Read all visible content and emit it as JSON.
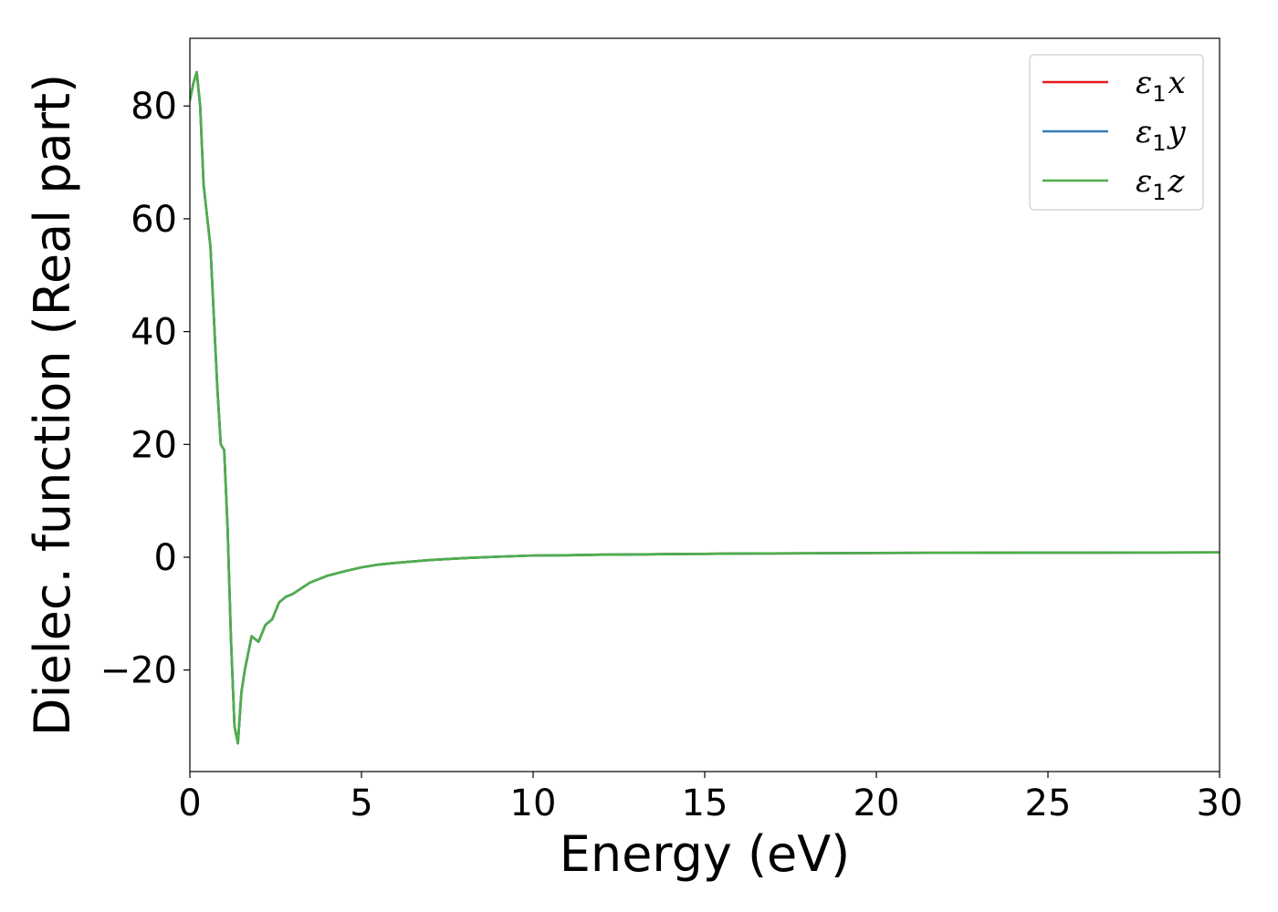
{
  "chart_data": {
    "type": "line",
    "title": "",
    "xlabel": "Energy (eV)",
    "ylabel": "Dielec. function (Real part)",
    "xlim": [
      0,
      30
    ],
    "ylim": [
      -38,
      92
    ],
    "xticks": [
      0,
      5,
      10,
      15,
      20,
      25,
      30
    ],
    "xtick_labels": [
      "0",
      "5",
      "10",
      "15",
      "20",
      "25",
      "30"
    ],
    "yticks": [
      -20,
      0,
      20,
      40,
      60,
      80
    ],
    "ytick_labels": [
      "−20",
      "0",
      "20",
      "40",
      "60",
      "80"
    ],
    "grid": false,
    "legend_position": "top-right",
    "x": [
      0,
      0.1,
      0.2,
      0.3,
      0.4,
      0.6,
      0.8,
      0.9,
      1.0,
      1.1,
      1.2,
      1.3,
      1.4,
      1.5,
      1.6,
      1.8,
      2.0,
      2.2,
      2.4,
      2.6,
      2.8,
      3.0,
      3.5,
      4.0,
      4.5,
      5.0,
      5.5,
      6.0,
      7.0,
      8.0,
      9.0,
      10.0,
      11.0,
      12.0,
      13.0,
      14.0,
      15.0,
      16.0,
      18.0,
      20.0,
      22.0,
      24.0,
      26.0,
      28.0,
      30.0
    ],
    "series": [
      {
        "name": "ε₁x",
        "label_main": "ε",
        "label_sub": "1",
        "label_var": "x",
        "color": "#e41a1c",
        "y": [
          81,
          84,
          86,
          80,
          66,
          55,
          30,
          20,
          19,
          5,
          -15,
          -30,
          -33,
          -24,
          -20,
          -14,
          -15,
          -12,
          -11,
          -8,
          -7,
          -6.5,
          -4.5,
          -3.3,
          -2.5,
          -1.8,
          -1.3,
          -1.0,
          -0.5,
          -0.15,
          0.1,
          0.3,
          0.35,
          0.45,
          0.5,
          0.55,
          0.6,
          0.65,
          0.7,
          0.75,
          0.78,
          0.8,
          0.82,
          0.84,
          0.85
        ]
      },
      {
        "name": "ε₁y",
        "label_main": "ε",
        "label_sub": "1",
        "label_var": "y",
        "color": "#377eb8",
        "y": [
          81,
          84,
          86,
          80,
          66,
          55,
          30,
          20,
          19,
          5,
          -15,
          -30,
          -33,
          -24,
          -20,
          -14,
          -15,
          -12,
          -11,
          -8,
          -7,
          -6.5,
          -4.5,
          -3.3,
          -2.5,
          -1.8,
          -1.3,
          -1.0,
          -0.5,
          -0.15,
          0.1,
          0.3,
          0.35,
          0.45,
          0.5,
          0.55,
          0.6,
          0.65,
          0.7,
          0.75,
          0.78,
          0.8,
          0.82,
          0.84,
          0.85
        ]
      },
      {
        "name": "ε₁z",
        "label_main": "ε",
        "label_sub": "1",
        "label_var": "z",
        "color": "#4daf4a",
        "y": [
          81,
          84,
          86,
          80,
          66,
          55,
          30,
          20,
          19,
          5,
          -15,
          -30,
          -33,
          -24,
          -20,
          -14,
          -15,
          -12,
          -11,
          -8,
          -7,
          -6.5,
          -4.5,
          -3.3,
          -2.5,
          -1.8,
          -1.3,
          -1.0,
          -0.5,
          -0.15,
          0.1,
          0.3,
          0.35,
          0.45,
          0.5,
          0.55,
          0.6,
          0.65,
          0.7,
          0.75,
          0.78,
          0.8,
          0.82,
          0.84,
          0.85
        ]
      }
    ]
  }
}
